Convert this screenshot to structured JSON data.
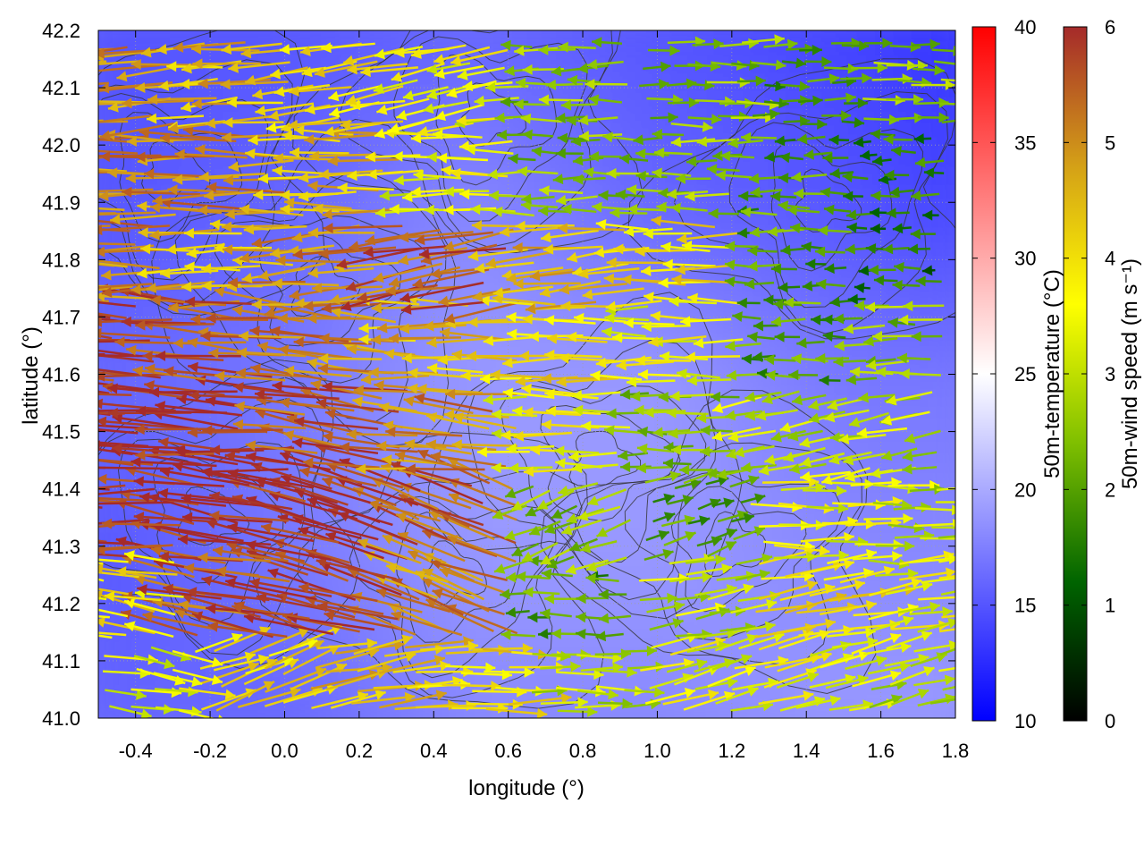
{
  "chart_data": {
    "type": "heatmap",
    "title": "",
    "xlabel": "longitude (°)",
    "ylabel": "latitude (°)",
    "xlim": [
      -0.5,
      1.8
    ],
    "ylim": [
      41.0,
      42.2
    ],
    "xticks": [
      "-0.4",
      "-0.2",
      "0.0",
      "0.2",
      "0.4",
      "0.6",
      "0.8",
      "1.0",
      "1.2",
      "1.4",
      "1.6",
      "1.8"
    ],
    "yticks": [
      "41.0",
      "41.1",
      "41.2",
      "41.3",
      "41.4",
      "41.5",
      "41.6",
      "41.7",
      "41.8",
      "41.9",
      "42.0",
      "42.1",
      "42.2"
    ],
    "grid": true,
    "temperature_colorbar": {
      "label": "50m-temperature (°C)",
      "range": [
        10,
        40
      ],
      "ticks": [
        "10",
        "15",
        "20",
        "25",
        "30",
        "35",
        "40"
      ],
      "colors": [
        "#0000ff",
        "#ffffff",
        "#ff0000"
      ]
    },
    "wind_colorbar": {
      "label": "50m-wind speed (m s⁻¹)",
      "range": [
        0,
        6
      ],
      "ticks": [
        "0",
        "1",
        "2",
        "3",
        "4",
        "5",
        "6"
      ],
      "colors": [
        "#000000",
        "#006400",
        "#7fbf00",
        "#ffff00",
        "#d4a017",
        "#a52a2a"
      ]
    },
    "temperature_field": {
      "lon": [
        -0.5,
        0.0,
        0.5,
        1.0,
        1.5,
        1.8
      ],
      "lat": [
        41.0,
        41.3,
        41.6,
        41.9,
        42.2
      ],
      "values_c": [
        [
          16,
          16,
          18,
          18,
          19,
          19
        ],
        [
          15,
          17,
          19,
          19,
          18,
          18
        ],
        [
          16,
          17,
          19,
          19,
          17,
          17
        ],
        [
          15,
          16,
          18,
          16,
          15,
          14
        ],
        [
          15,
          15,
          16,
          15,
          14,
          13
        ]
      ]
    },
    "wind_field": {
      "lon": [
        -0.4,
        -0.1,
        0.2,
        0.5,
        0.8,
        1.1,
        1.4,
        1.7
      ],
      "lat": [
        41.05,
        41.2,
        41.35,
        41.5,
        41.65,
        41.8,
        41.95,
        42.1
      ],
      "speed_ms": [
        [
          3.5,
          4.0,
          4.5,
          4.0,
          3.0,
          3.5,
          3.5,
          3.0
        ],
        [
          4.0,
          5.5,
          6.0,
          5.0,
          2.0,
          3.0,
          4.0,
          3.5
        ],
        [
          6.0,
          6.0,
          6.0,
          5.5,
          2.5,
          2.0,
          3.5,
          3.0
        ],
        [
          6.0,
          6.0,
          5.5,
          5.0,
          3.5,
          2.5,
          3.0,
          3.0
        ],
        [
          6.0,
          5.5,
          5.0,
          4.5,
          4.0,
          3.5,
          2.0,
          2.5
        ],
        [
          5.0,
          4.5,
          5.0,
          5.5,
          4.5,
          4.0,
          2.0,
          1.5
        ],
        [
          5.0,
          5.0,
          4.5,
          3.5,
          2.5,
          2.5,
          2.0,
          1.5
        ],
        [
          5.0,
          4.5,
          4.0,
          3.5,
          2.5,
          2.5,
          2.0,
          2.5
        ]
      ],
      "direction_to_deg": [
        [
          350,
          20,
          10,
          0,
          0,
          15,
          15,
          15
        ],
        [
          170,
          170,
          165,
          160,
          180,
          10,
          10,
          10
        ],
        [
          180,
          170,
          165,
          160,
          200,
          20,
          0,
          0
        ],
        [
          175,
          175,
          170,
          175,
          180,
          180,
          190,
          190
        ],
        [
          175,
          175,
          175,
          180,
          180,
          180,
          180,
          180
        ],
        [
          180,
          180,
          185,
          190,
          185,
          180,
          180,
          180
        ],
        [
          180,
          180,
          180,
          180,
          180,
          180,
          180,
          180
        ],
        [
          185,
          185,
          190,
          190,
          180,
          0,
          0,
          0
        ]
      ]
    }
  }
}
